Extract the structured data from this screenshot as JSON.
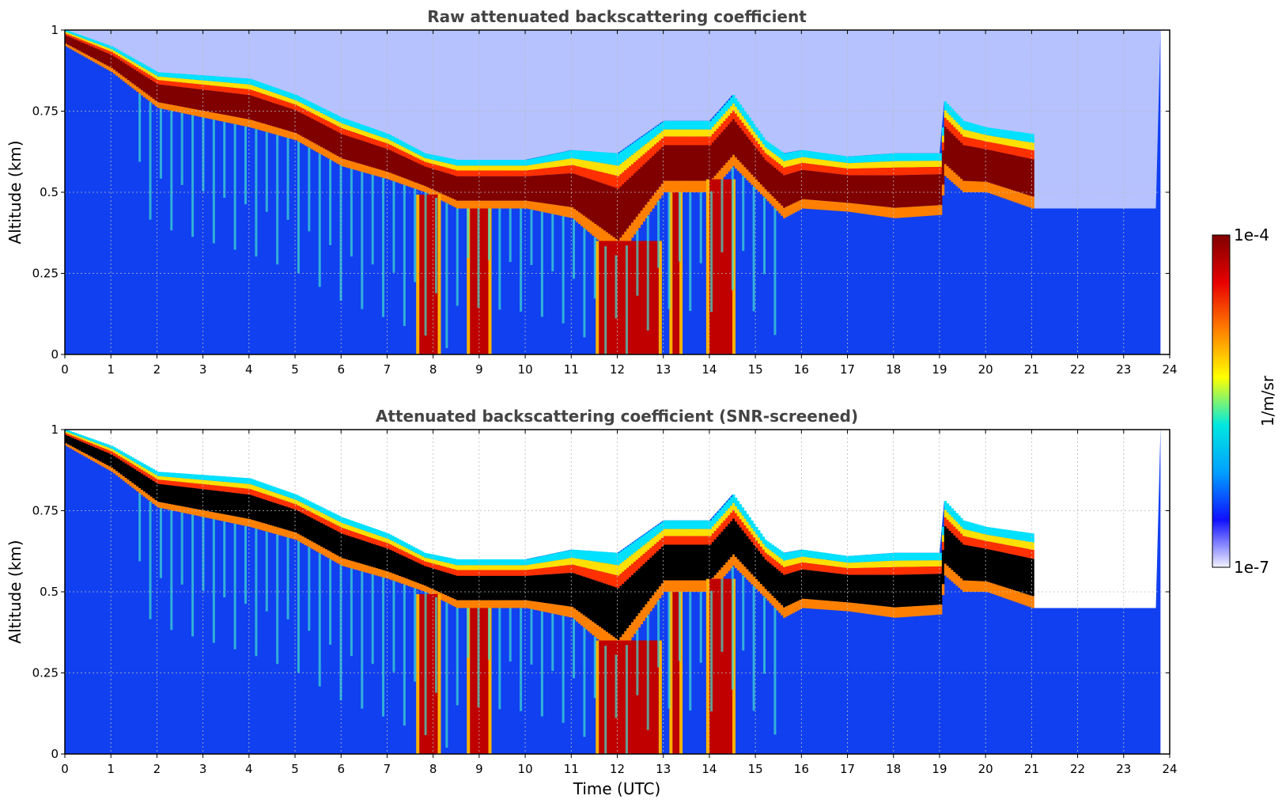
{
  "chart_data": [
    {
      "type": "heatmap",
      "title": "Raw attenuated backscattering coefficient",
      "xlabel": "",
      "ylabel": "Altitude (km)",
      "xlim": [
        0,
        24
      ],
      "ylim": [
        0,
        1
      ],
      "xticks": [
        "0",
        "1",
        "2",
        "3",
        "4",
        "5",
        "6",
        "7",
        "8",
        "9",
        "10",
        "11",
        "12",
        "13",
        "14",
        "15",
        "16",
        "17",
        "18",
        "19",
        "20",
        "21",
        "22",
        "23",
        "24"
      ],
      "yticks": [
        "0",
        "0.25",
        "0.5",
        "0.75",
        "1"
      ],
      "grid": true,
      "screened": false,
      "layer_top_km": [
        [
          0,
          1.0
        ],
        [
          1,
          0.95
        ],
        [
          2,
          0.87
        ],
        [
          3,
          0.86
        ],
        [
          4,
          0.85
        ],
        [
          5,
          0.8
        ],
        [
          6,
          0.73
        ],
        [
          7,
          0.68
        ],
        [
          7.8,
          0.62
        ],
        [
          8.5,
          0.6
        ],
        [
          9,
          0.6
        ],
        [
          10,
          0.6
        ],
        [
          11,
          0.63
        ],
        [
          12,
          0.62
        ],
        [
          13,
          0.72
        ],
        [
          14,
          0.72
        ],
        [
          14.5,
          0.8
        ],
        [
          15.2,
          0.66
        ],
        [
          15.6,
          0.62
        ],
        [
          16,
          0.63
        ],
        [
          17,
          0.61
        ],
        [
          18,
          0.62
        ],
        [
          19,
          0.62
        ],
        [
          19.1,
          0.78
        ],
        [
          19.5,
          0.72
        ],
        [
          20,
          0.7
        ],
        [
          21,
          0.68
        ]
      ],
      "layer_base_km": [
        [
          0,
          0.95
        ],
        [
          1,
          0.87
        ],
        [
          2,
          0.76
        ],
        [
          3,
          0.73
        ],
        [
          4,
          0.7
        ],
        [
          5,
          0.66
        ],
        [
          6,
          0.58
        ],
        [
          7,
          0.54
        ],
        [
          7.8,
          0.5
        ],
        [
          8.5,
          0.45
        ],
        [
          9,
          0.45
        ],
        [
          10,
          0.45
        ],
        [
          11,
          0.42
        ],
        [
          12,
          0.3
        ],
        [
          13,
          0.5
        ],
        [
          14,
          0.5
        ],
        [
          14.5,
          0.58
        ],
        [
          15.2,
          0.48
        ],
        [
          15.6,
          0.42
        ],
        [
          16,
          0.45
        ],
        [
          17,
          0.44
        ],
        [
          18,
          0.42
        ],
        [
          19,
          0.43
        ],
        [
          19.1,
          0.55
        ],
        [
          19.5,
          0.5
        ],
        [
          20,
          0.5
        ],
        [
          21,
          0.45
        ]
      ],
      "precip_hours": [
        [
          7.7,
          8.1
        ],
        [
          8.8,
          9.2
        ],
        [
          11.6,
          12.9
        ],
        [
          13.2,
          13.35
        ],
        [
          14.0,
          14.5
        ]
      ],
      "precip_threshold": 0.9
    },
    {
      "type": "heatmap",
      "title": "Attenuated backscattering coefficient (SNR-screened)",
      "xlabel": "Time (UTC)",
      "ylabel": "Altitude (km)",
      "xlim": [
        0,
        24
      ],
      "ylim": [
        0,
        1
      ],
      "xticks": [
        "0",
        "1",
        "2",
        "3",
        "4",
        "5",
        "6",
        "7",
        "8",
        "9",
        "10",
        "11",
        "12",
        "13",
        "14",
        "15",
        "16",
        "17",
        "18",
        "19",
        "20",
        "21",
        "22",
        "23",
        "24"
      ],
      "yticks": [
        "0",
        "0.25",
        "0.5",
        "0.75",
        "1"
      ],
      "grid": true,
      "screened": true,
      "layer_top_km": [
        [
          0,
          1.0
        ],
        [
          1,
          0.95
        ],
        [
          2,
          0.87
        ],
        [
          3,
          0.86
        ],
        [
          4,
          0.85
        ],
        [
          5,
          0.8
        ],
        [
          6,
          0.73
        ],
        [
          7,
          0.68
        ],
        [
          7.8,
          0.62
        ],
        [
          8.5,
          0.6
        ],
        [
          9,
          0.6
        ],
        [
          10,
          0.6
        ],
        [
          11,
          0.63
        ],
        [
          12,
          0.62
        ],
        [
          13,
          0.72
        ],
        [
          14,
          0.72
        ],
        [
          14.5,
          0.8
        ],
        [
          15.2,
          0.66
        ],
        [
          15.6,
          0.62
        ],
        [
          16,
          0.63
        ],
        [
          17,
          0.61
        ],
        [
          18,
          0.62
        ],
        [
          19,
          0.62
        ],
        [
          19.1,
          0.78
        ],
        [
          19.5,
          0.72
        ],
        [
          20,
          0.7
        ],
        [
          21,
          0.68
        ]
      ],
      "layer_base_km": [
        [
          0,
          0.95
        ],
        [
          1,
          0.87
        ],
        [
          2,
          0.76
        ],
        [
          3,
          0.73
        ],
        [
          4,
          0.7
        ],
        [
          5,
          0.66
        ],
        [
          6,
          0.58
        ],
        [
          7,
          0.54
        ],
        [
          7.8,
          0.5
        ],
        [
          8.5,
          0.45
        ],
        [
          9,
          0.45
        ],
        [
          10,
          0.45
        ],
        [
          11,
          0.42
        ],
        [
          12,
          0.3
        ],
        [
          13,
          0.5
        ],
        [
          14,
          0.5
        ],
        [
          14.5,
          0.58
        ],
        [
          15.2,
          0.48
        ],
        [
          15.6,
          0.42
        ],
        [
          16,
          0.45
        ],
        [
          17,
          0.44
        ],
        [
          18,
          0.42
        ],
        [
          19,
          0.43
        ],
        [
          19.1,
          0.55
        ],
        [
          19.5,
          0.5
        ],
        [
          20,
          0.5
        ],
        [
          21,
          0.45
        ]
      ],
      "precip_hours": [
        [
          7.7,
          8.1
        ],
        [
          8.8,
          9.2
        ],
        [
          11.6,
          12.9
        ],
        [
          13.2,
          13.35
        ],
        [
          14.0,
          14.5
        ]
      ],
      "precip_threshold": 0.9
    }
  ],
  "colorbar": {
    "label": "1/m/sr",
    "max_label": "1e-4",
    "min_label": "1e-7",
    "stops": [
      "#f2f2ff",
      "#1010ff",
      "#00a0ff",
      "#00e8e0",
      "#ffff00",
      "#ff8000",
      "#e80000",
      "#800000"
    ]
  },
  "colors": {
    "background_fill": "#1040f0",
    "saturated_core": "#000000",
    "grid": "#bbbbbb",
    "title_text": "#444444"
  }
}
